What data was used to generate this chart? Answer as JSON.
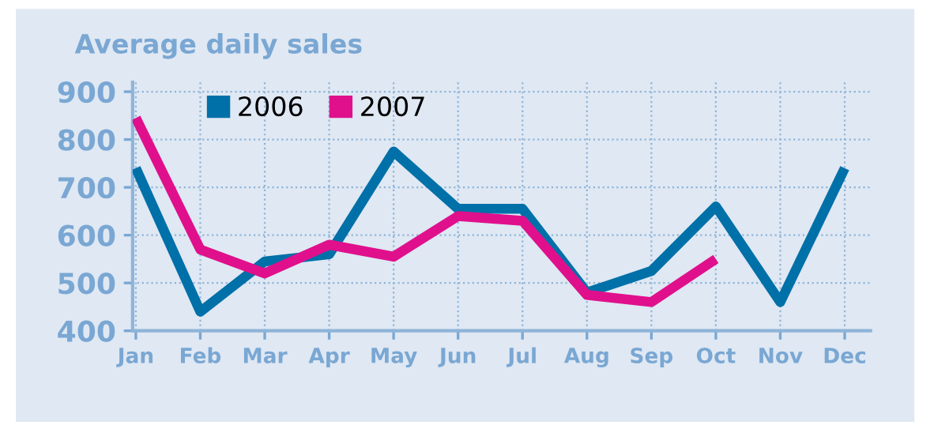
{
  "chart_data": {
    "type": "line",
    "title": "Average daily sales",
    "categories": [
      "Jan",
      "Feb",
      "Mar",
      "Apr",
      "May",
      "Jun",
      "Jul",
      "Aug",
      "Sep",
      "Oct",
      "Nov",
      "Dec"
    ],
    "series": [
      {
        "name": "2006",
        "color": "#0070a8",
        "values": [
          740,
          440,
          545,
          560,
          775,
          655,
          655,
          480,
          525,
          660,
          460,
          740
        ]
      },
      {
        "name": "2007",
        "color": "#e0108c",
        "values": [
          845,
          570,
          520,
          580,
          555,
          640,
          630,
          475,
          460,
          550,
          null,
          null
        ]
      }
    ],
    "ylim": [
      400,
      920
    ],
    "yticks": [
      400,
      500,
      600,
      700,
      800,
      900
    ],
    "grid": true,
    "legend": "top left",
    "marker": "none",
    "line_style": "solid"
  }
}
